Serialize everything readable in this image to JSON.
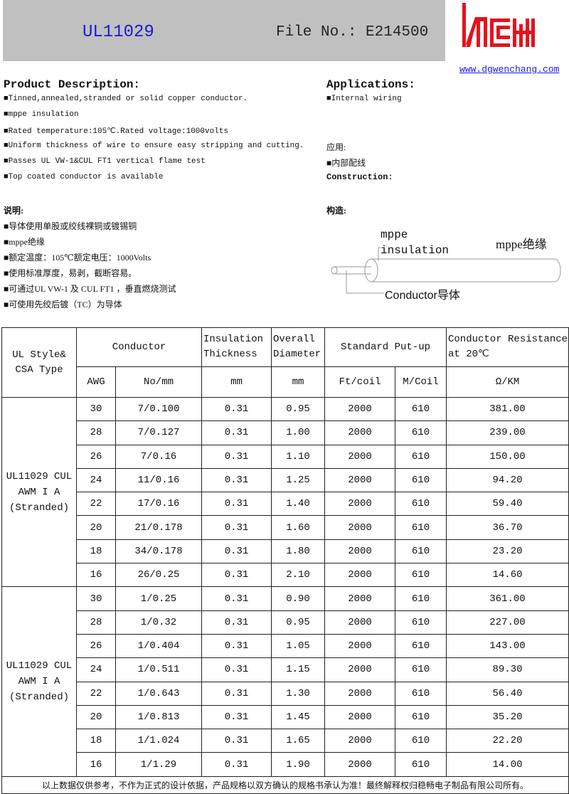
{
  "header": {
    "model": "UL11029",
    "file_no": "File No.: E214500",
    "website": "www.dgwenchang.com",
    "logo_text": "WCH",
    "logo_color": "#e8101c"
  },
  "description": {
    "title": "Product Description:",
    "items": [
      "■Tinned,annealed,stranded or solid copper conductor.",
      "■mppe insulation",
      "■Rated temperature:105℃.Rated voltage:1000volts",
      "■Uniform thickness of wire to ensure easy stripping and cutting.",
      "■Passes UL VW-1&CUL FT1 vertical flame test",
      "■Top coated conductor is available"
    ]
  },
  "description_cn": {
    "title": "说明:",
    "items": [
      "■导体使用单股或绞线裸铜或镀锡铜",
      "■mppe绝缘",
      "■额定温度：105℃额定电压：1000Volts",
      "■使用标准厚度，易剥，截断容易。",
      "■可通过UL VW-1 及 CUL FT1 ，垂直燃烧测试",
      "■可使用先绞后镀（TC）为导体"
    ]
  },
  "applications": {
    "title": "Applications:",
    "items": [
      "■Internal wiring"
    ],
    "title_cn": "应用:",
    "items_cn": [
      "■内部配线"
    ],
    "construction": "Construction:",
    "construction_cn": "构造:"
  },
  "diagram": {
    "insulation_label_1": "mppe",
    "insulation_label_2": "insulation",
    "insulation_cn": "mppe绝缘",
    "conductor_label": "Conductor导体"
  },
  "table": {
    "headers": {
      "style": "UL Style& CSA Type",
      "conductor": "Conductor",
      "insulation": "Insulation Thickness",
      "diameter": "Overall Diameter",
      "putup": "Standard Put-up",
      "resistance": "Conductor Resistance at 20℃",
      "awg": "AWG",
      "nomm": "No/mm",
      "ins_unit": "mm",
      "dia_unit": "mm",
      "ft": "Ft/coil",
      "m": "M/Coil",
      "res_unit": "Ω/KM"
    },
    "groups": [
      {
        "label": "UL11029 CUL AWM I A (Stranded)",
        "rows": [
          [
            "30",
            "7/0.100",
            "0.31",
            "0.95",
            "2000",
            "610",
            "381.00"
          ],
          [
            "28",
            "7/0.127",
            "0.31",
            "1.00",
            "2000",
            "610",
            "239.00"
          ],
          [
            "26",
            "7/0.16",
            "0.31",
            "1.10",
            "2000",
            "610",
            "150.00"
          ],
          [
            "24",
            "11/0.16",
            "0.31",
            "1.25",
            "2000",
            "610",
            "94.20"
          ],
          [
            "22",
            "17/0.16",
            "0.31",
            "1.40",
            "2000",
            "610",
            "59.40"
          ],
          [
            "20",
            "21/0.178",
            "0.31",
            "1.60",
            "2000",
            "610",
            "36.70"
          ],
          [
            "18",
            "34/0.178",
            "0.31",
            "1.80",
            "2000",
            "610",
            "23.20"
          ],
          [
            "16",
            "26/0.25",
            "0.31",
            "2.10",
            "2000",
            "610",
            "14.60"
          ]
        ]
      },
      {
        "label": "UL11029 CUL AWM I A (Stranded)",
        "rows": [
          [
            "30",
            "1/0.25",
            "0.31",
            "0.90",
            "2000",
            "610",
            "361.00"
          ],
          [
            "28",
            "1/0.32",
            "0.31",
            "0.95",
            "2000",
            "610",
            "227.00"
          ],
          [
            "26",
            "1/0.404",
            "0.31",
            "1.05",
            "2000",
            "610",
            "143.00"
          ],
          [
            "24",
            "1/0.511",
            "0.31",
            "1.15",
            "2000",
            "610",
            "89.30"
          ],
          [
            "22",
            "1/0.643",
            "0.31",
            "1.30",
            "2000",
            "610",
            "56.40"
          ],
          [
            "20",
            "1/0.813",
            "0.31",
            "1.45",
            "2000",
            "610",
            "35.20"
          ],
          [
            "18",
            "1/1.024",
            "0.31",
            "1.65",
            "2000",
            "610",
            "22.20"
          ],
          [
            "16",
            "1/1.29",
            "0.31",
            "1.90",
            "2000",
            "610",
            "14.00"
          ]
        ]
      }
    ],
    "footer": "以上数据仅供参考，不作为正式的设计依据，产品规格以双方确认的规格书承认为准！最终解释权归稳畅电子制品有限公司所有。"
  }
}
